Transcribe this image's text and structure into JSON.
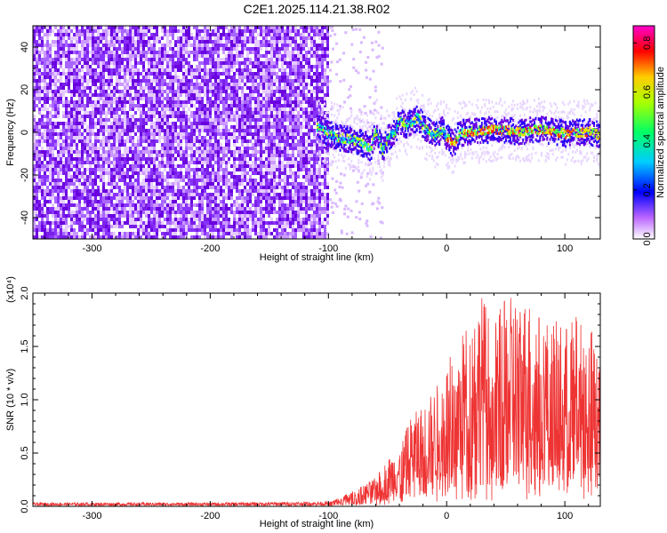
{
  "title": "C2E1.2025.114.21.38.R02",
  "chart_data": [
    {
      "type": "heatmap",
      "name": "spectrogram",
      "xlabel": "Height of straight line (km)",
      "ylabel": "Frequency (Hz)",
      "xlim": [
        -350,
        130
      ],
      "ylim": [
        -50,
        50
      ],
      "xticks": [
        -300,
        -200,
        -100,
        0,
        100
      ],
      "yticks": [
        -40,
        -20,
        0,
        20,
        40
      ],
      "noise_region_x": [
        -350,
        -100
      ],
      "signal_trace": {
        "x": [
          -110,
          -100,
          -90,
          -80,
          -70,
          -65,
          -60,
          -55,
          -50,
          -45,
          -40,
          -35,
          -30,
          -25,
          -20,
          -15,
          -10,
          -5,
          0,
          5,
          10,
          20,
          40,
          60,
          80,
          100,
          120,
          130
        ],
        "y": [
          3,
          0,
          -2,
          -3,
          -5,
          -7,
          2,
          -8,
          -2,
          0,
          6,
          4,
          5,
          8,
          3,
          1,
          -1,
          2,
          -2,
          -5,
          0,
          1,
          2,
          1,
          2,
          0,
          1,
          -1
        ]
      },
      "colorbar": {
        "label": "Normalized spectral amplitude",
        "ticks": [
          0.0,
          0.2,
          0.4,
          0.6,
          0.8
        ],
        "tick_labels": [
          "0.0",
          "0.2",
          "0.4",
          "0.6",
          "0.8"
        ],
        "range": [
          0,
          0.87
        ]
      }
    },
    {
      "type": "line",
      "name": "snr",
      "xlabel": "Height of straight line (km)",
      "ylabel": "SNR (10 * v/v)",
      "multiplier_label": "(x10⁴)",
      "xlim": [
        -350,
        130
      ],
      "ylim": [
        0,
        2.0
      ],
      "xticks": [
        -300,
        -200,
        -100,
        0,
        100
      ],
      "yticks": [
        "0.0",
        "0.5",
        "1.0",
        "1.5",
        "2.0"
      ],
      "series": [
        {
          "name": "SNR",
          "color": "#ee3333",
          "envelope_x": [
            -350,
            -200,
            -100,
            -90,
            -80,
            -70,
            -60,
            -50,
            -40,
            -30,
            -20,
            -10,
            0,
            10,
            20,
            30,
            40,
            50,
            60,
            70,
            80,
            90,
            100,
            110,
            120,
            130
          ],
          "envelope_max": [
            0.03,
            0.03,
            0.04,
            0.09,
            0.14,
            0.2,
            0.27,
            0.45,
            0.55,
            0.85,
            0.95,
            1.1,
            1.35,
            1.55,
            1.8,
            2.0,
            1.75,
            1.95,
            2.0,
            1.95,
            1.8,
            1.75,
            1.7,
            1.8,
            1.65,
            1.75
          ]
        }
      ]
    }
  ]
}
